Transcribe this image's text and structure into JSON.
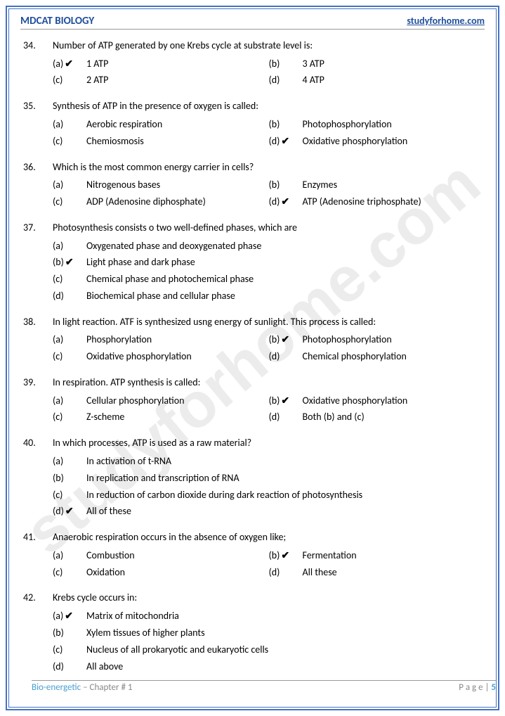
{
  "header": {
    "left": "MDCAT BIOLOGY",
    "right": "studyforhome.com"
  },
  "watermark": "studyforhome.com",
  "footer": {
    "subject": "Bio-energetic",
    "chapter": " – Chapter # 1",
    "pageLabel": "P a g e  | ",
    "pageNum": "5"
  },
  "check": "✔",
  "questions": [
    {
      "num": "34.",
      "text": "Number of ATP generated by one Krebs cycle at substrate level is:",
      "layout": "two-col",
      "options": [
        {
          "l": "(a)",
          "t": "1 ATP",
          "c": true
        },
        {
          "l": "(b)",
          "t": "3 ATP",
          "c": false
        },
        {
          "l": "(c)",
          "t": "2 ATP",
          "c": false
        },
        {
          "l": "(d)",
          "t": "4 ATP",
          "c": false
        }
      ]
    },
    {
      "num": "35.",
      "text": "Synthesis of ATP in the presence of oxygen is called:",
      "layout": "two-col",
      "options": [
        {
          "l": "(a)",
          "t": "Aerobic respiration",
          "c": false
        },
        {
          "l": "(b)",
          "t": "Photophosphorylation",
          "c": false
        },
        {
          "l": "(c)",
          "t": "Chemiosmosis",
          "c": false
        },
        {
          "l": "(d)",
          "t": "Oxidative phosphorylation",
          "c": true
        }
      ]
    },
    {
      "num": "36.",
      "text": "Which is the most common energy carrier in cells?",
      "layout": "two-col",
      "options": [
        {
          "l": "(a)",
          "t": "Nitrogenous bases",
          "c": false
        },
        {
          "l": "(b)",
          "t": "Enzymes",
          "c": false
        },
        {
          "l": "(c)",
          "t": "ADP (Adenosine diphosphate)",
          "c": false
        },
        {
          "l": "(d)",
          "t": "ATP (Adenosine triphosphate)",
          "c": true
        }
      ]
    },
    {
      "num": "37.",
      "text": "Photosynthesis consists o two well-defined phases, which are",
      "layout": "one-col",
      "options": [
        {
          "l": "(a)",
          "t": "Oxygenated phase and deoxygenated phase",
          "c": false
        },
        {
          "l": "(b)",
          "t": "Light phase and dark phase",
          "c": true
        },
        {
          "l": "(c)",
          "t": "Chemical phase and photochemical phase",
          "c": false
        },
        {
          "l": "(d)",
          "t": "Biochemical phase and cellular phase",
          "c": false
        }
      ]
    },
    {
      "num": "38.",
      "text": "In light reaction. ATF is synthesized usng energy of sunlight. This process is called:",
      "layout": "two-col",
      "options": [
        {
          "l": "(a)",
          "t": "Phosphorylation",
          "c": false
        },
        {
          "l": "(b)",
          "t": "Photophosphorylation",
          "c": true
        },
        {
          "l": "(c)",
          "t": "Oxidative phosphorylation",
          "c": false
        },
        {
          "l": "(d)",
          "t": "Chemical phosphorylation",
          "c": false
        }
      ]
    },
    {
      "num": "39.",
      "text": "In respiration. ATP synthesis is called:",
      "layout": "two-col",
      "options": [
        {
          "l": "(a)",
          "t": "Cellular phosphorylation",
          "c": false
        },
        {
          "l": "(b)",
          "t": "Oxidative phosphorylation",
          "c": true
        },
        {
          "l": "(c)",
          "t": "Z-scheme",
          "c": false
        },
        {
          "l": "(d)",
          "t": "Both (b) and (c)",
          "c": false
        }
      ]
    },
    {
      "num": "40.",
      "text": "In which processes, ATP is used as a raw material?",
      "layout": "one-col",
      "options": [
        {
          "l": "(a)",
          "t": "In activation of t-RNA",
          "c": false
        },
        {
          "l": "(b)",
          "t": "In replication and transcription of RNA",
          "c": false
        },
        {
          "l": "(c)",
          "t": "In reduction of carbon dioxide during dark reaction of photosynthesis",
          "c": false
        },
        {
          "l": "(d)",
          "t": "All of these",
          "c": true
        }
      ]
    },
    {
      "num": "41.",
      "text": "Anaerobic respiration occurs in the absence of oxygen like;",
      "layout": "two-col",
      "options": [
        {
          "l": "(a)",
          "t": "Combustion",
          "c": false
        },
        {
          "l": "(b)",
          "t": "Fermentation",
          "c": true
        },
        {
          "l": "(c)",
          "t": "Oxidation",
          "c": false
        },
        {
          "l": "(d)",
          "t": "All these",
          "c": false
        }
      ]
    },
    {
      "num": "42.",
      "text": "Krebs cycle occurs in:",
      "layout": "one-col",
      "options": [
        {
          "l": "(a)",
          "t": "Matrix of mitochondria",
          "c": true
        },
        {
          "l": "(b)",
          "t": "Xylem tissues of higher plants",
          "c": false
        },
        {
          "l": "(c)",
          "t": "Nucleus of all prokaryotic and eukaryotic cells",
          "c": false
        },
        {
          "l": "(d)",
          "t": "All above",
          "c": false
        }
      ]
    }
  ]
}
